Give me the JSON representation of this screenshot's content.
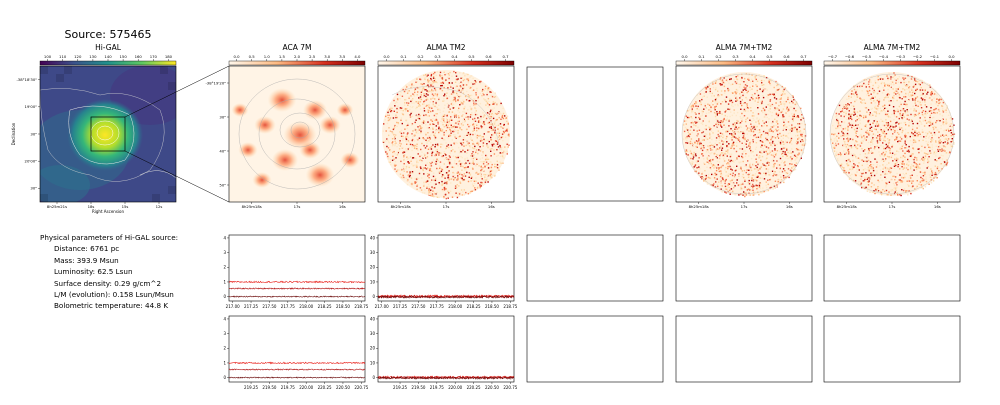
{
  "page": {
    "title": "Source: 575465"
  },
  "panels": {
    "higal": {
      "title": "Hi-GAL",
      "colorbar_ticks": [
        "100",
        "110",
        "120",
        "130",
        "140",
        "150",
        "160",
        "170",
        "180"
      ],
      "y_ticks": [
        "-38°18'30\"",
        "19'00\"",
        "30\"",
        "20'00\"",
        "30\""
      ],
      "x_ticks": [
        "8h25m21s",
        "18s",
        "15s",
        "12s"
      ],
      "xlabel": "Right Ascension",
      "ylabel": "Declination"
    },
    "aca7m": {
      "title": "ACA 7M",
      "colorbar_ticks": [
        "0.0",
        "0.5",
        "1.0",
        "1.5",
        "2.0",
        "2.5",
        "3.0",
        "3.5",
        "4.0"
      ],
      "y_ticks": [
        "-38°19'20\"",
        "30\"",
        "40\"",
        "50\""
      ],
      "x_ticks": [
        "8h25m18s",
        "17s",
        "16s"
      ]
    },
    "almatm2": {
      "title": "ALMA TM2",
      "colorbar_ticks": [
        "0.0",
        "0.1",
        "0.2",
        "0.3",
        "0.4",
        "0.5",
        "0.6",
        "0.7"
      ],
      "x_ticks": [
        "8h25m18s",
        "17s",
        "16s"
      ]
    },
    "combined": {
      "title": "ALMA 7M+TM2",
      "colorbar_ticks": [
        "0.0",
        "0.1",
        "0.2",
        "0.3",
        "0.4",
        "0.5",
        "0.6",
        "0.7"
      ],
      "x_ticks": [
        "8h25m18s",
        "17s",
        "16s"
      ]
    },
    "combined_neg": {
      "title": "ALMA 7M+TM2",
      "colorbar_ticks": [
        "−0.7",
        "−0.6",
        "−0.5",
        "−0.4",
        "−0.3",
        "−0.2",
        "−0.1",
        "0.0"
      ],
      "x_ticks": [
        "8h25m18s",
        "17s",
        "16s"
      ]
    }
  },
  "physical_parameters": {
    "heading": "Physical parameters of Hi-GAL source:",
    "distance": "Distance: 6761 pc",
    "mass": "Mass: 393.9 Msun",
    "luminosity": "Luminosity: 62.5 Lsun",
    "surface_density": "Surface density: 0.29 g/cm^2",
    "lm": "L/M (evolution): 0.158 Lsun/Msun",
    "tbol": "Bolometric temperature: 44.8 K"
  },
  "chart_data": [
    {
      "type": "line",
      "panel": "spectrum-aca-row1",
      "xlim": [
        216.95,
        218.8
      ],
      "ylim": [
        -0.3,
        4.2
      ],
      "x_ticks": [
        217.0,
        217.25,
        217.5,
        217.75,
        218.0,
        218.25,
        218.5,
        218.75
      ],
      "y_ticks": [
        0,
        1,
        2,
        3,
        4
      ],
      "series": [
        {
          "level": 1.0,
          "noise": 0.05,
          "color": "#e8201a"
        },
        {
          "level": 0.55,
          "noise": 0.04,
          "color": "#b01010"
        },
        {
          "level": 0.0,
          "noise": 0.04,
          "color": "#6b0a0a"
        }
      ]
    },
    {
      "type": "line",
      "panel": "spectrum-tm2-row1",
      "xlim": [
        216.95,
        218.8
      ],
      "ylim": [
        -3,
        42
      ],
      "x_ticks": [
        217.0,
        217.25,
        217.5,
        217.75,
        218.0,
        218.25,
        218.5,
        218.75
      ],
      "y_ticks": [
        0,
        10,
        20,
        30,
        40
      ],
      "series": [
        {
          "level": 0.3,
          "noise": 0.7,
          "color": "#e8201a"
        },
        {
          "level": 0.0,
          "noise": 0.7,
          "color": "#b01010"
        },
        {
          "level": -0.3,
          "noise": 0.7,
          "color": "#6b0a0a"
        }
      ]
    },
    {
      "type": "line",
      "panel": "spectrum-aca-row2",
      "xlim": [
        218.95,
        220.8
      ],
      "ylim": [
        -0.3,
        4.2
      ],
      "x_ticks": [
        219.25,
        219.5,
        219.75,
        220.0,
        220.25,
        220.5,
        220.75
      ],
      "y_ticks": [
        0,
        1,
        2,
        3,
        4
      ],
      "series": [
        {
          "level": 1.0,
          "noise": 0.05,
          "color": "#e8201a"
        },
        {
          "level": 0.55,
          "noise": 0.04,
          "color": "#b01010"
        },
        {
          "level": 0.0,
          "noise": 0.04,
          "color": "#6b0a0a"
        }
      ]
    },
    {
      "type": "line",
      "panel": "spectrum-tm2-row2",
      "xlim": [
        218.95,
        220.8
      ],
      "ylim": [
        -3,
        42
      ],
      "x_ticks": [
        219.25,
        219.5,
        219.75,
        220.0,
        220.25,
        220.5,
        220.75
      ],
      "y_ticks": [
        0,
        10,
        20,
        30,
        40
      ],
      "series": [
        {
          "level": 0.3,
          "noise": 0.7,
          "color": "#e8201a"
        },
        {
          "level": 0.0,
          "noise": 0.7,
          "color": "#b01010"
        },
        {
          "level": -0.3,
          "noise": 0.7,
          "color": "#6b0a0a"
        }
      ]
    }
  ]
}
